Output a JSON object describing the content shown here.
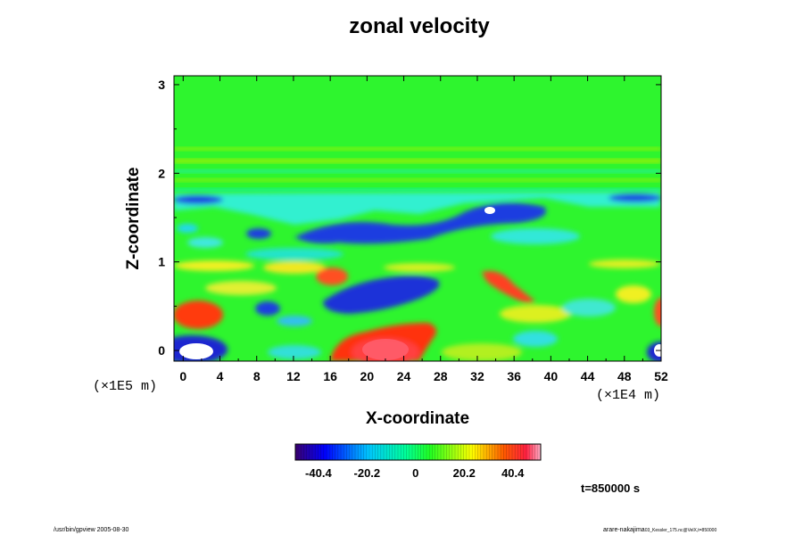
{
  "chart_data": {
    "type": "heatmap",
    "title": "zonal velocity",
    "xlabel": "X-coordinate",
    "ylabel": "Z-coordinate",
    "x_scale_label": "(×1E4 m)",
    "y_scale_label": "(×1E5 m)",
    "xlim": [
      -1,
      52
    ],
    "ylim": [
      -0.12,
      3.1
    ],
    "x_ticks": [
      0,
      4,
      8,
      12,
      16,
      20,
      24,
      28,
      32,
      36,
      40,
      44,
      48,
      52
    ],
    "y_ticks": [
      0,
      1,
      2,
      3
    ],
    "colorbar": {
      "range": [
        -50,
        52
      ],
      "ticks": [
        -40.4,
        -20.2,
        0,
        20.2,
        40.4
      ],
      "tick_labels": [
        "-40.4",
        "-20.2",
        "0",
        "20.2",
        "40.4"
      ],
      "colormap": "rainbow (purple-blue-cyan-green-yellow-red-pink)"
    },
    "features": [
      {
        "x": 20.5,
        "z": 0.05,
        "value": 45
      },
      {
        "x": 1.5,
        "z": -0.02,
        "value": -55
      },
      {
        "x": 52,
        "z": 0.0,
        "value": -50
      },
      {
        "x": 33.5,
        "z": 1.58,
        "value": -50
      },
      {
        "x": 21,
        "z": 0.6,
        "value": -40
      },
      {
        "x": 2,
        "z": 0.42,
        "value": 35
      },
      {
        "x": 16.5,
        "z": 0.83,
        "value": 38
      },
      {
        "x": 35.5,
        "z": 0.72,
        "value": 36
      }
    ],
    "time_label": "t=850000 s"
  },
  "footer": {
    "left": "/usr/bin/gpview 2005-08-30",
    "right": "arare-nakajima",
    "right_small": "03_Kessler_175.nc@VelX,t=850000"
  },
  "colors": {
    "background_field": "#2ef52e",
    "negative_extreme": "#1a1adc",
    "positive_extreme": "#ff3010"
  }
}
